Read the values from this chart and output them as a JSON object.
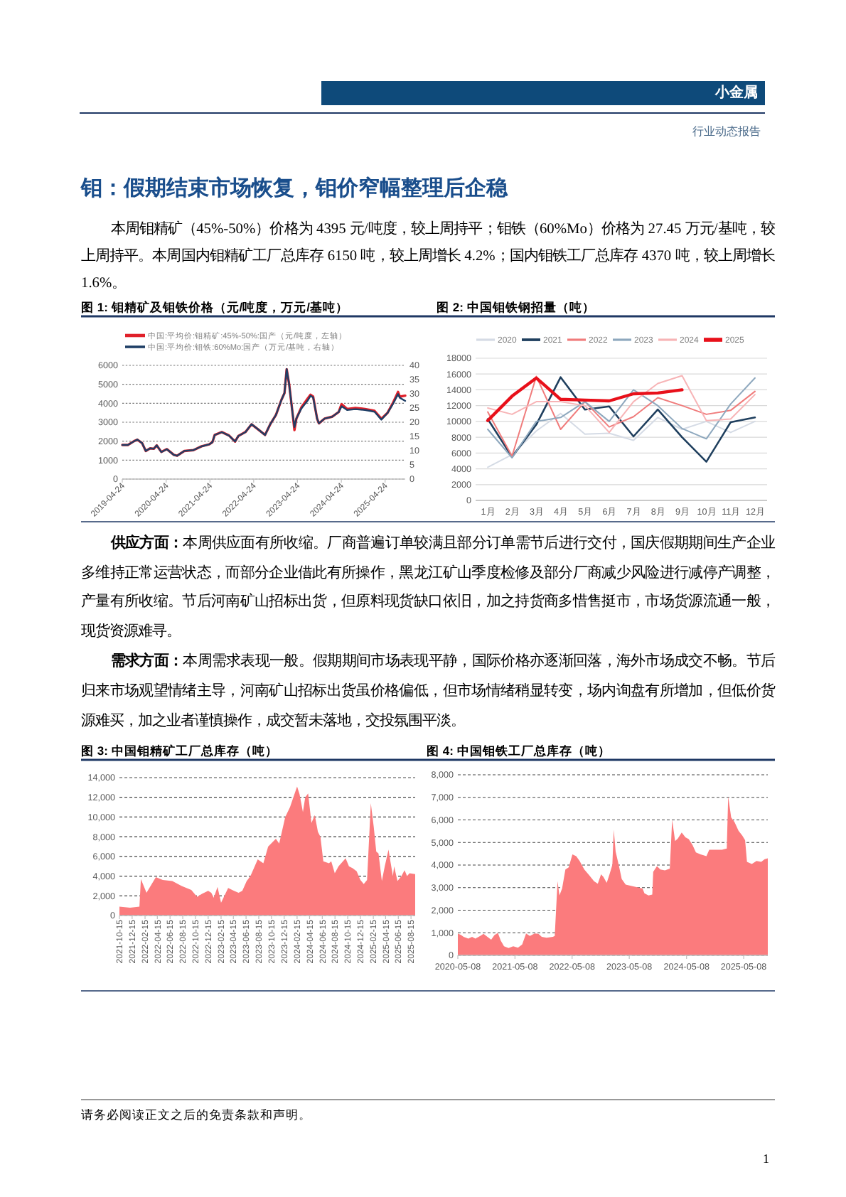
{
  "chart_data": [
    {
      "type": "other",
      "title": "钼：假期结束市场恢复，钼价窄幅整理后企稳",
      "annotations": [
        "小金属",
        "行业动态报告",
        "本周钼精矿（45%-50%）价格为 4395 元/吨度，较上周持平；钼铁（60%Mo）价格为 27.45 万元/基吨，较上周持平。本周国内钼精矿工厂总库存 6150 吨，较上周增长 4.2%；国内钼铁工厂总库存 4370 吨，较上周增长 1.6%。"
      ]
    },
    {
      "type": "line",
      "title": "图 1: 钼精矿及钼铁价格（元/吨度，万元/基吨）",
      "x": [
        "2019-04-24",
        "2019-06-10",
        "2019-07-31",
        "2019-08-28",
        "2019-10-06",
        "2019-11-06",
        "2019-12-12",
        "2020-01-12",
        "2020-02-05",
        "2020-03-15",
        "2020-04-30",
        "2020-06-27",
        "2020-07-24",
        "2020-09-22",
        "2020-12-08",
        "2021-02-13",
        "2021-04-18",
        "2021-05-15",
        "2021-06-03",
        "2021-08-01",
        "2021-09-30",
        "2021-11-20",
        "2021-12-18",
        "2022-02-14",
        "2022-04-06",
        "2022-05-31",
        "2022-07-28",
        "2022-09-09",
        "2022-10-27",
        "2022-12-12",
        "2023-01-06",
        "2023-01-24",
        "2023-02-14",
        "2023-03-15",
        "2023-03-30",
        "2023-04-15",
        "2023-05-28",
        "2023-07-18",
        "2023-08-11",
        "2023-09-02",
        "2023-10-05",
        "2023-10-20",
        "2023-12-06",
        "2024-02-07",
        "2024-04-02",
        "2024-04-26",
        "2024-06-11",
        "2024-08-20",
        "2024-11-07",
        "2025-01-26",
        "2025-03-24",
        "2025-05-15",
        "2025-07-01",
        "2025-08-10",
        "2025-08-25",
        "2025-10-09"
      ],
      "series": [
        {
          "name": "中国:平均价:钼精矿:45%-50%:国产（元/吨度，左轴）",
          "color": "#e0202a",
          "values": [
            1800,
            1800,
            2000,
            2080,
            1900,
            1480,
            1620,
            1600,
            1780,
            1430,
            1580,
            1280,
            1230,
            1480,
            1530,
            1730,
            1830,
            1950,
            2330,
            2480,
            2300,
            1980,
            2280,
            2480,
            2890,
            2620,
            2330,
            2890,
            3390,
            4190,
            4540,
            5800,
            5000,
            3440,
            2590,
            3190,
            3800,
            4250,
            4450,
            4350,
            3190,
            2940,
            3190,
            3290,
            3540,
            3950,
            3700,
            3750,
            3700,
            3600,
            3180,
            3500,
            4050,
            4600,
            4350,
            4400
          ]
        },
        {
          "name": "中国:平均价:钼铁:60%Mo:国产（万元/基吨，右轴）",
          "color": "#1f3f66",
          "axis": "y2",
          "values": [
            12.0,
            12.0,
            13.3,
            13.9,
            12.7,
            9.9,
            10.8,
            10.7,
            11.9,
            9.5,
            10.5,
            8.5,
            8.2,
            9.9,
            10.2,
            11.5,
            12.2,
            13.0,
            15.5,
            16.5,
            15.3,
            13.2,
            15.2,
            16.5,
            19.3,
            17.5,
            15.5,
            19.3,
            22.6,
            27.9,
            30.3,
            38.7,
            33.3,
            22.9,
            18.3,
            21.3,
            24.9,
            27.6,
            29.3,
            28.7,
            21.3,
            19.6,
            21.3,
            21.9,
            23.6,
            25.6,
            24.3,
            24.6,
            24.3,
            23.7,
            20.9,
            23.3,
            26.6,
            29.9,
            28.6,
            27.5
          ]
        }
      ],
      "xlim": [
        "2019-04-24",
        "2025-10-09"
      ],
      "xticks": [
        "2019-04-24",
        "2020-04-24",
        "2021-04-24",
        "2022-04-24",
        "2023-04-24",
        "2024-04-24",
        "2025-04-24"
      ],
      "ylim": [
        0,
        6000
      ],
      "yticks": [
        0,
        1000,
        2000,
        3000,
        4000,
        5000,
        6000
      ],
      "y2lim": [
        0,
        40
      ],
      "y2ticks": [
        0,
        5,
        10,
        15,
        20,
        25,
        30,
        35,
        40
      ],
      "grid": "y",
      "legend": "top"
    },
    {
      "type": "line",
      "title": "图 2: 中国钼铁钢招量（吨）",
      "categories": [
        "1月",
        "2月",
        "3月",
        "4月",
        "5月",
        "6月",
        "7月",
        "8月",
        "9月",
        "10月",
        "11月",
        "12月"
      ],
      "series": [
        {
          "name": "2020",
          "color": "#d5dbe5",
          "values": [
            4200,
            5800,
            8800,
            11000,
            8400,
            8500,
            7600,
            10500,
            9000,
            10000,
            8600,
            10000
          ]
        },
        {
          "name": "2021",
          "color": "#1f3f5e",
          "values": [
            10300,
            5500,
            9600,
            15600,
            11500,
            11900,
            8100,
            11500,
            8000,
            4900,
            9900,
            10500
          ]
        },
        {
          "name": "2022",
          "color": "#f07c7c",
          "values": [
            11200,
            5600,
            15700,
            9000,
            12500,
            9300,
            10600,
            13000,
            12000,
            10900,
            11400,
            13800
          ]
        },
        {
          "name": "2023",
          "color": "#8ea8be",
          "values": [
            9000,
            5400,
            10000,
            10500,
            12500,
            10000,
            14000,
            12000,
            9100,
            7800,
            12200,
            15500
          ]
        },
        {
          "name": "2024",
          "color": "#f7b4b6",
          "values": [
            11700,
            10900,
            12500,
            12500,
            12000,
            8600,
            12500,
            14800,
            15800,
            10100,
            10300,
            13400
          ]
        },
        {
          "name": "2025",
          "color": "#e8101a",
          "values": [
            10100,
            13200,
            15500,
            12800,
            12700,
            12600,
            13500,
            13600,
            14000,
            null,
            null,
            null
          ]
        }
      ],
      "ylim": [
        0,
        18000
      ],
      "yticks": [
        0,
        2000,
        4000,
        6000,
        8000,
        10000,
        12000,
        14000,
        16000,
        18000
      ],
      "grid": "y",
      "legend": "top"
    },
    {
      "type": "other",
      "annotations": [
        "供应方面：",
        "本周供应面有所收缩。厂商普遍订单较满且部分订单需节后进行交付，国庆假期期间生产企业多维持正常运营状态，而部分企业借此有所操作，黑龙江矿山季度检修及部分厂商减少风险进行减停产调整，产量有所收缩。节后河南矿山招标出货，但原料现货缺口依旧，加之持货商多惜售挺市，市场货源流通一般，现货资源难寻。",
        "需求方面：",
        "本周需求表现一般。假期期间市场表现平静，国际价格亦逐渐回落，海外市场成交不畅。节后归来市场观望情绪主导，河南矿山招标出货虽价格偏低，但市场情绪稍显转变，场内询盘有所增加，但低价货源难买，加之业者谨慎操作，成交暂未落地，交投氛围平淡。"
      ]
    },
    {
      "type": "area",
      "title": "图 3: 中国钼精矿工厂总库存（吨）",
      "color": "#fb7b7d",
      "x": [
        "2021-10-15",
        "2021-12-05",
        "2022-01-19",
        "2022-01-26",
        "2022-02-22",
        "2022-04-08",
        "2022-05-11",
        "2022-06-26",
        "2022-08-10",
        "2022-09-25",
        "2022-10-23",
        "2022-11-15",
        "2022-12-15",
        "2022-12-30",
        "2023-01-11",
        "2023-01-29",
        "2023-02-15",
        "2023-03-03",
        "2023-03-21",
        "2023-04-18",
        "2023-05-10",
        "2023-05-28",
        "2023-06-18",
        "2023-07-06",
        "2023-08-10",
        "2023-09-06",
        "2023-09-29",
        "2023-11-05",
        "2023-11-21",
        "2023-12-20",
        "2024-01-12",
        "2024-01-28",
        "2024-02-15",
        "2024-02-27",
        "2024-03-14",
        "2024-03-25",
        "2024-04-08",
        "2024-04-24",
        "2024-05-10",
        "2024-05-25",
        "2024-06-06",
        "2024-06-20",
        "2024-07-17",
        "2024-07-28",
        "2024-08-14",
        "2024-09-01",
        "2024-10-05",
        "2024-10-21",
        "2024-11-08",
        "2024-11-27",
        "2024-12-15",
        "2024-12-31",
        "2025-01-16",
        "2025-02-03",
        "2025-02-17",
        "2025-03-01",
        "2025-03-12",
        "2025-03-28",
        "2025-04-11",
        "2025-04-29",
        "2025-05-08",
        "2025-05-20",
        "2025-05-26",
        "2025-06-11",
        "2025-06-30",
        "2025-07-15",
        "2025-07-27",
        "2025-08-08",
        "2025-09-04"
      ],
      "values": [
        900,
        800,
        900,
        3700,
        2300,
        3900,
        3600,
        3500,
        3000,
        2600,
        1900,
        2200,
        2500,
        2300,
        1800,
        2900,
        1300,
        2000,
        2800,
        2500,
        2300,
        2500,
        3500,
        4000,
        5700,
        5300,
        7000,
        7800,
        7300,
        10000,
        11000,
        12000,
        13100,
        12300,
        10500,
        12000,
        12400,
        9400,
        10200,
        8500,
        8000,
        5500,
        5300,
        5500,
        4300,
        5000,
        5800,
        5000,
        4800,
        4500,
        3600,
        3200,
        3600,
        11400,
        9000,
        6500,
        6300,
        3500,
        5000,
        6700,
        5500,
        4000,
        5000,
        3500,
        4000,
        4600,
        4000,
        4300,
        4200
      ],
      "xlim": [
        "2021-10-15",
        "2025-09-04"
      ],
      "xticks": [
        "2021-10-15",
        "2021-12-15",
        "2022-02-15",
        "2022-04-15",
        "2022-06-15",
        "2022-08-15",
        "2022-10-15",
        "2022-12-15",
        "2023-02-15",
        "2023-04-15",
        "2023-06-15",
        "2023-08-15",
        "2023-10-15",
        "2023-12-15",
        "2024-02-15",
        "2024-04-15",
        "2024-06-15",
        "2024-08-15",
        "2024-10-15",
        "2024-12-15",
        "2025-02-15",
        "2025-04-15",
        "2025-06-15",
        "2025-08-15"
      ],
      "ylim": [
        0,
        14000
      ],
      "yticks": [
        0,
        {
          "value": 2000,
          "label": "2,000"
        },
        {
          "value": 4000,
          "label": "4,000"
        },
        {
          "value": 6000,
          "label": "6,000"
        },
        {
          "value": 8000,
          "label": "8,000"
        },
        {
          "value": 10000,
          "label": "10,000"
        },
        {
          "value": 12000,
          "label": "12,000"
        },
        {
          "value": 14000,
          "label": "14,000"
        }
      ],
      "grid": "y"
    },
    {
      "type": "area",
      "title": "图 4: 中国钼铁工厂总库存（吨）",
      "color": "#fb7b7d",
      "x": [
        "2020-05-08",
        "2020-05-29",
        "2020-06-14",
        "2020-07-14",
        "2020-08-07",
        "2020-08-28",
        "2020-09-28",
        "2020-10-19",
        "2020-11-13",
        "2020-12-07",
        "2020-12-28",
        "2021-01-19",
        "2021-02-06",
        "2021-02-27",
        "2021-03-28",
        "2021-04-27",
        "2021-05-27",
        "2021-06-23",
        "2021-07-18",
        "2021-08-11",
        "2021-09-11",
        "2021-10-05",
        "2021-10-26",
        "2021-11-26",
        "2022-01-05",
        "2022-01-17",
        "2022-02-04",
        "2022-02-16",
        "2022-03-05",
        "2022-03-26",
        "2022-04-16",
        "2022-05-10",
        "2022-06-03",
        "2022-06-25",
        "2022-07-25",
        "2022-08-25",
        "2022-09-25",
        "2022-10-19",
        "2022-11-09",
        "2022-11-24",
        "2022-12-15",
        "2023-01-02",
        "2023-01-20",
        "2023-01-29",
        "2023-02-10",
        "2023-03-03",
        "2023-03-21",
        "2023-04-15",
        "2023-05-24",
        "2023-07-08",
        "2023-08-01",
        "2023-08-13",
        "2023-09-08",
        "2023-10-02",
        "2023-10-08",
        "2023-11-01",
        "2023-11-23",
        "2023-12-22",
        "2024-01-22",
        "2024-02-06",
        "2024-02-25",
        "2024-03-13",
        "2024-04-07",
        "2024-05-01",
        "2024-05-22",
        "2024-06-15",
        "2024-07-07",
        "2024-08-06",
        "2024-09-12",
        "2024-09-30",
        "2024-11-06",
        "2024-12-21",
        "2025-01-20",
        "2025-01-29",
        "2025-02-17",
        "2025-03-11",
        "2025-04-05",
        "2025-04-29",
        "2025-05-17",
        "2025-05-29",
        "2025-06-29",
        "2025-07-29",
        "2025-08-28",
        "2025-09-19",
        "2025-10-09"
      ],
      "values": [
        970,
        900,
        820,
        740,
        820,
        740,
        860,
        950,
        820,
        690,
        900,
        990,
        650,
        400,
        320,
        400,
        340,
        480,
        970,
        860,
        970,
        950,
        820,
        780,
        820,
        860,
        3280,
        2650,
        2960,
        3800,
        3900,
        4470,
        4390,
        4180,
        3800,
        3550,
        3280,
        3170,
        3590,
        3470,
        3210,
        3590,
        4010,
        5570,
        4600,
        3970,
        3380,
        3130,
        3070,
        3000,
        2960,
        2750,
        2650,
        2690,
        3700,
        3950,
        3800,
        3760,
        3840,
        6010,
        5060,
        5170,
        5440,
        5230,
        5150,
        4890,
        4560,
        4470,
        4390,
        4680,
        4680,
        4680,
        4730,
        7040,
        6110,
        5900,
        5520,
        5310,
        5100,
        4140,
        4050,
        4180,
        4140,
        4260,
        4300
      ],
      "xlim": [
        "2020-05-08",
        "2025-10-09"
      ],
      "xticks": [
        "2020-05-08",
        "2021-05-08",
        "2022-05-08",
        "2023-05-08",
        "2024-05-08",
        "2025-05-08"
      ],
      "ylim": [
        0,
        8000
      ],
      "yticks": [
        0,
        {
          "value": 1000,
          "label": "1,000"
        },
        {
          "value": 2000,
          "label": "2,000"
        },
        {
          "value": 3000,
          "label": "3,000"
        },
        {
          "value": 4000,
          "label": "4,000"
        },
        {
          "value": 5000,
          "label": "5,000"
        },
        {
          "value": 6000,
          "label": "6,000"
        },
        {
          "value": 7000,
          "label": "7,000"
        },
        {
          "value": 8000,
          "label": "8,000"
        }
      ],
      "grid": "y"
    },
    {
      "type": "other",
      "annotations": [
        "请务必阅读正文之后的免责条款和声明。",
        "1"
      ]
    }
  ]
}
